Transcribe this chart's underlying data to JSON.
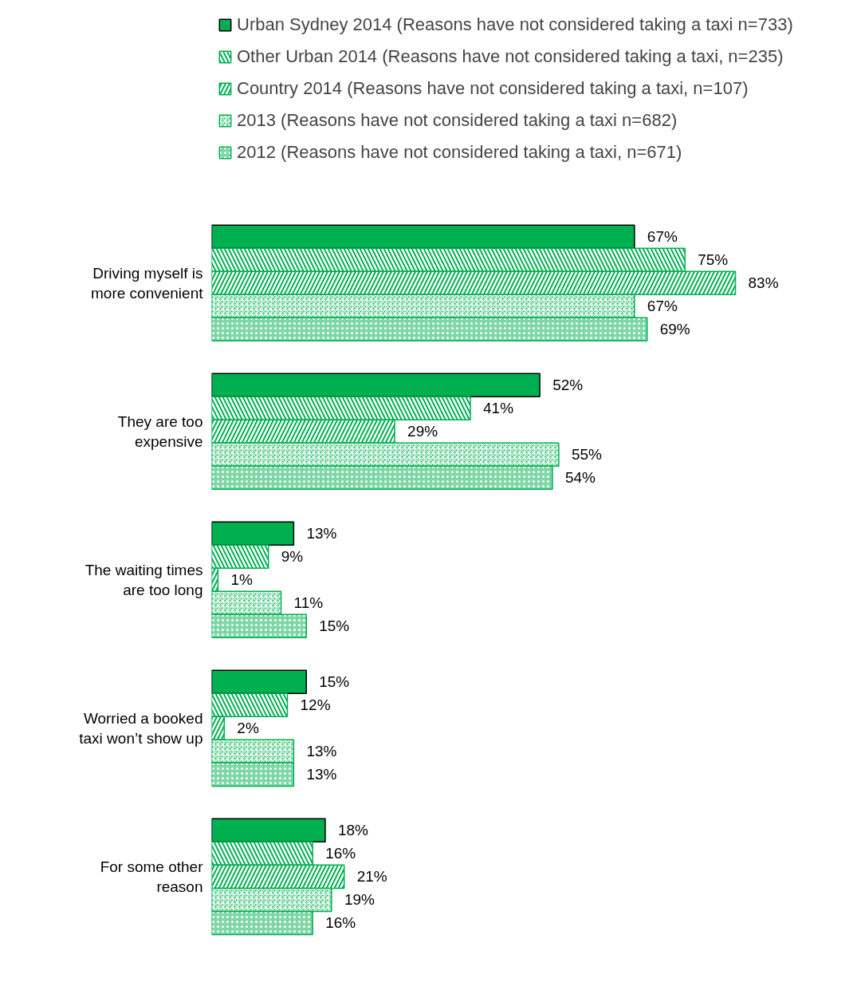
{
  "chart_data": {
    "type": "bar",
    "orientation": "horizontal",
    "legend": "top",
    "grid": false,
    "categories": [
      "Driving myself is more convenient",
      "They are too expensive",
      "The waiting times are too long",
      "Worried a booked taxi won’t show up",
      "For some other reason"
    ],
    "series": [
      {
        "name": "Urban Sydney 2014 (Reasons have not considered taking a taxi n=733)",
        "color": "#00b050",
        "values": [
          67,
          52,
          13,
          15,
          18
        ],
        "value_labels": [
          "67%",
          "52%",
          "13%",
          "15%",
          "18%"
        ]
      },
      {
        "name": "Other Urban 2014 (Reasons have not considered taking a taxi, n=235)",
        "color": "#00b050",
        "values": [
          75,
          41,
          9,
          12,
          16
        ],
        "value_labels": [
          "75%",
          "41%",
          "9%",
          "12%",
          "16%"
        ]
      },
      {
        "name": "Country 2014 (Reasons have not considered taking a taxi, n=107)",
        "color": "#00b050",
        "values": [
          83,
          29,
          1,
          2,
          21
        ],
        "value_labels": [
          "83%",
          "29%",
          "1%",
          "2%",
          "21%"
        ]
      },
      {
        "name": "2013 (Reasons have not considered taking a taxi n=682)",
        "color": "#00b050",
        "values": [
          67,
          55,
          11,
          13,
          19
        ],
        "value_labels": [
          "67%",
          "55%",
          "11%",
          "13%",
          "19%"
        ]
      },
      {
        "name": "2012 (Reasons have not considered taking a taxi, n=671)",
        "color": "#00b050",
        "values": [
          69,
          54,
          15,
          13,
          16
        ],
        "value_labels": [
          "69%",
          "54%",
          "15%",
          "13%",
          "16%"
        ]
      }
    ]
  }
}
